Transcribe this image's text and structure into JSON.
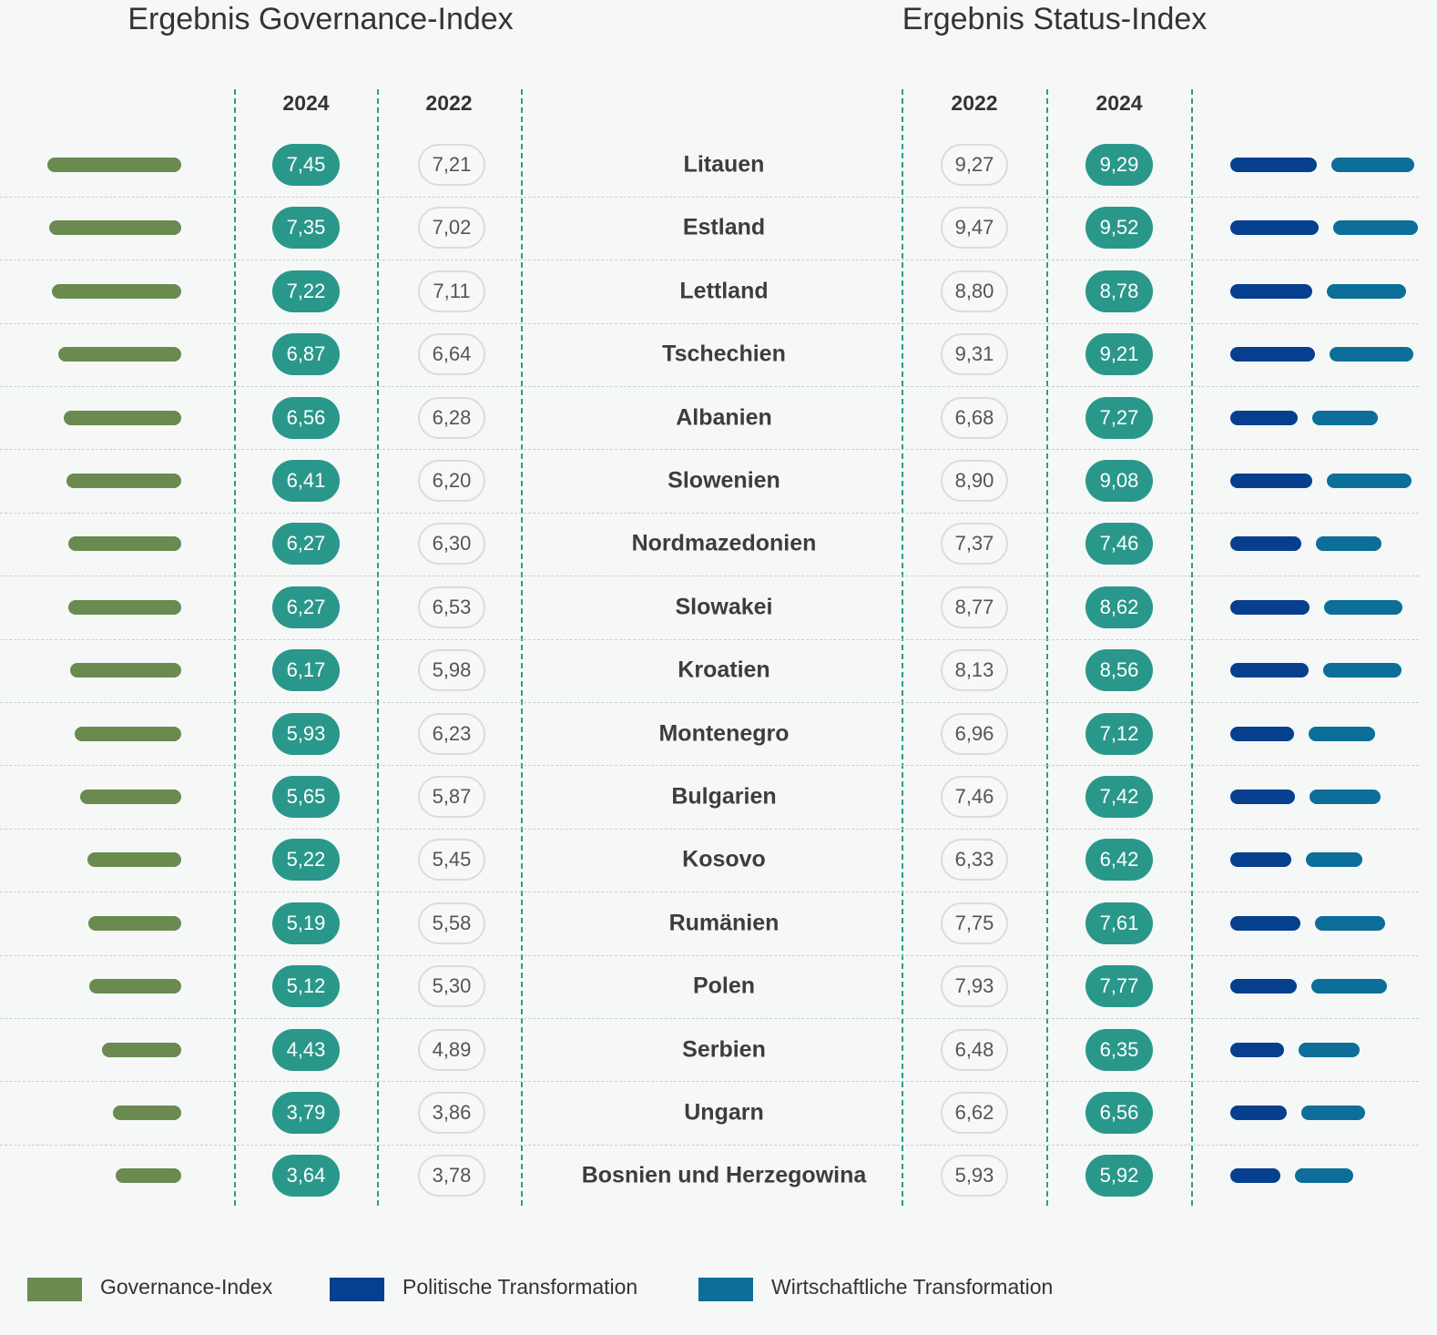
{
  "titles": {
    "governance": "Ergebnis Governance-Index",
    "status": "Ergebnis Status-Index"
  },
  "column_headers": {
    "gov_2024": "2024",
    "gov_2022": "2022",
    "status_2022": "2022",
    "status_2024": "2024"
  },
  "colors": {
    "governance": "#6a8a50",
    "political": "#073f8f",
    "economic": "#0c6e99",
    "pill_filled": "#2a978b"
  },
  "legend": [
    {
      "label": "Governance-Index",
      "color": "#6a8a50"
    },
    {
      "label": "Politische Transformation",
      "color": "#073f8f"
    },
    {
      "label": "Wirtschaftliche Transformation",
      "color": "#0c6e99"
    }
  ],
  "chart_data": {
    "type": "table",
    "rows": [
      {
        "country": "Litauen",
        "gov_2024": "7,45",
        "gov_2022": "7,21",
        "status_2022": "9,27",
        "status_2024": "9,29",
        "political": 9.3,
        "economic": 8.9
      },
      {
        "country": "Estland",
        "gov_2024": "7,35",
        "gov_2022": "7,02",
        "status_2022": "9,47",
        "status_2024": "9,52",
        "political": 9.5,
        "economic": 9.1
      },
      {
        "country": "Lettland",
        "gov_2024": "7,22",
        "gov_2022": "7,11",
        "status_2022": "8,80",
        "status_2024": "8,78",
        "political": 8.8,
        "economic": 8.6
      },
      {
        "country": "Tschechien",
        "gov_2024": "6,87",
        "gov_2022": "6,64",
        "status_2022": "9,31",
        "status_2024": "9,21",
        "political": 9.1,
        "economic": 9.0
      },
      {
        "country": "Albanien",
        "gov_2024": "6,56",
        "gov_2022": "6,28",
        "status_2022": "6,68",
        "status_2024": "7,27",
        "political": 7.3,
        "economic": 7.0
      },
      {
        "country": "Slowenien",
        "gov_2024": "6,41",
        "gov_2022": "6,20",
        "status_2022": "8,90",
        "status_2024": "9,08",
        "political": 8.8,
        "economic": 9.1
      },
      {
        "country": "Nordmazedonien",
        "gov_2024": "6,27",
        "gov_2022": "6,30",
        "status_2022": "7,37",
        "status_2024": "7,46",
        "political": 7.6,
        "economic": 7.1
      },
      {
        "country": "Slowakei",
        "gov_2024": "6,27",
        "gov_2022": "6,53",
        "status_2022": "8,77",
        "status_2024": "8,62",
        "political": 8.5,
        "economic": 8.5
      },
      {
        "country": "Kroatien",
        "gov_2024": "6,17",
        "gov_2022": "5,98",
        "status_2022": "8,13",
        "status_2024": "8,56",
        "political": 8.4,
        "economic": 8.5
      },
      {
        "country": "Montenegro",
        "gov_2024": "5,93",
        "gov_2022": "6,23",
        "status_2022": "6,96",
        "status_2024": "7,12",
        "political": 6.9,
        "economic": 7.1
      },
      {
        "country": "Bulgarien",
        "gov_2024": "5,65",
        "gov_2022": "5,87",
        "status_2022": "7,46",
        "status_2024": "7,42",
        "political": 7.0,
        "economic": 7.6
      },
      {
        "country": "Kosovo",
        "gov_2024": "5,22",
        "gov_2022": "5,45",
        "status_2022": "6,33",
        "status_2024": "6,42",
        "political": 6.6,
        "economic": 6.0
      },
      {
        "country": "Rumänien",
        "gov_2024": "5,19",
        "gov_2022": "5,58",
        "status_2022": "7,75",
        "status_2024": "7,61",
        "political": 7.5,
        "economic": 7.6
      },
      {
        "country": "Polen",
        "gov_2024": "5,12",
        "gov_2022": "5,30",
        "status_2022": "7,93",
        "status_2024": "7,77",
        "political": 7.2,
        "economic": 8.1
      },
      {
        "country": "Serbien",
        "gov_2024": "4,43",
        "gov_2022": "4,89",
        "status_2022": "6,48",
        "status_2024": "6,35",
        "political": 5.8,
        "economic": 6.6
      },
      {
        "country": "Ungarn",
        "gov_2024": "3,79",
        "gov_2022": "3,86",
        "status_2022": "6,62",
        "status_2024": "6,56",
        "political": 6.1,
        "economic": 6.8
      },
      {
        "country": "Bosnien und Herzegowina",
        "gov_2024": "3,64",
        "gov_2022": "3,78",
        "status_2022": "5,93",
        "status_2024": "5,92",
        "political": 5.4,
        "economic": 6.3
      }
    ]
  }
}
